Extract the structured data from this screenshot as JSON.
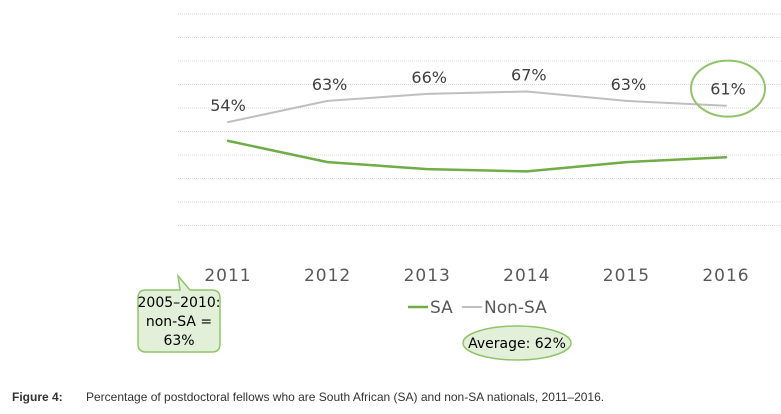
{
  "chart_data": {
    "type": "line",
    "categories": [
      "2011",
      "2012",
      "2013",
      "2014",
      "2015",
      "2016"
    ],
    "series": [
      {
        "name": "SA",
        "color": "#70ad47",
        "values": [
          46,
          37,
          34,
          33,
          37,
          39
        ],
        "labels_shown": false
      },
      {
        "name": "Non-SA",
        "color": "#bfbfbf",
        "values": [
          54,
          63,
          66,
          67,
          63,
          61
        ],
        "data_labels": [
          "54%",
          "63%",
          "66%",
          "67%",
          "63%",
          "61%"
        ]
      }
    ],
    "ylim": [
      0,
      100
    ],
    "grid": true,
    "legend_items": [
      "SA",
      "Non-SA"
    ],
    "legend_position": "bottom-center",
    "highlight": {
      "category": "2016",
      "series": "Non-SA",
      "style": "green circle"
    }
  },
  "callouts": {
    "range_note": [
      "2005–2010:",
      "non-SA =",
      "63%"
    ],
    "average": "Average: 62%"
  },
  "caption": {
    "label": "Figure 4:",
    "text": "Percentage of postdoctoral fellows who are South African (SA) and non-SA nationals, 2011–2016."
  },
  "colors": {
    "sa": "#70ad47",
    "non_sa": "#bfbfbf",
    "callout_fill": "#e2efd9",
    "callout_stroke": "#92c36b"
  }
}
